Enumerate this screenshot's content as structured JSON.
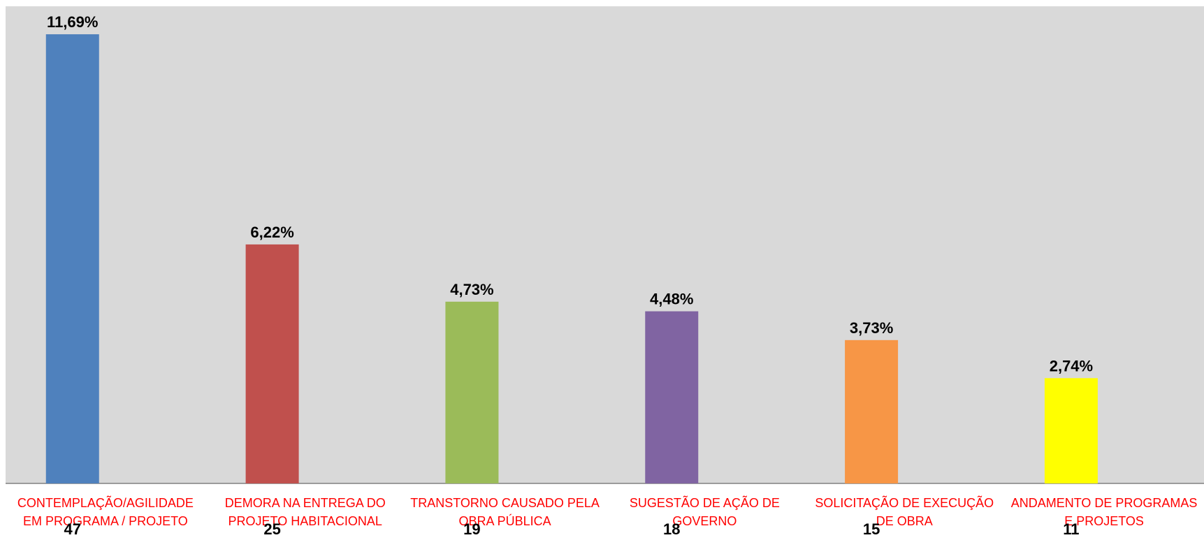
{
  "chart_data": {
    "type": "bar",
    "categories": [
      "CONTEMPLAÇÃO/AGILIDADE EM PROGRAMA / PROJETO",
      "DEMORA NA ENTREGA DO PROJETO HABITACIONAL",
      "TRANSTORNO CAUSADO PELA OBRA PÚBLICA",
      "SUGESTÃO DE AÇÃO DE GOVERNO",
      "SOLICITAÇÃO DE EXECUÇÃO DE OBRA",
      "ANDAMENTO DE PROGRAMAS E PROJETOS"
    ],
    "values": [
      11.69,
      6.22,
      4.73,
      4.48,
      3.73,
      2.74
    ],
    "value_labels": [
      "11,69%",
      "6,22%",
      "4,73%",
      "4,48%",
      "3,73%",
      "2,74%"
    ],
    "counts": [
      47,
      25,
      19,
      18,
      15,
      11
    ],
    "colors": [
      "#4f81bd",
      "#c0504d",
      "#9bbb59",
      "#8064a2",
      "#f79646",
      "#ffff00"
    ]
  }
}
